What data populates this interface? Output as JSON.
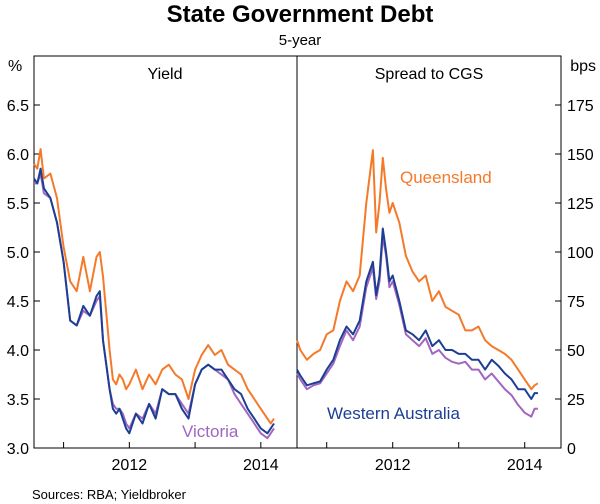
{
  "chart_data": {
    "type": "line",
    "title": "State Government Debt",
    "subtitle": "5-year",
    "source": "Sources:   RBA; Yieldbroker",
    "colors": {
      "queensland": "#f47a2a",
      "western_australia": "#1c3f94",
      "victoria": "#a066c0"
    },
    "panels": [
      {
        "title": "Yield",
        "unit": "%",
        "ylim": [
          3.0,
          7.0
        ],
        "yticks": [
          "3.0",
          "3.5",
          "4.0",
          "4.5",
          "5.0",
          "5.5",
          "6.0",
          "6.5"
        ],
        "xticks": [
          "2012",
          "2014"
        ],
        "xlim": [
          2010.55,
          2014.55
        ],
        "series": [
          {
            "name": "Queensland",
            "x": [
              2010.55,
              2010.6,
              2010.65,
              2010.7,
              2010.8,
              2010.9,
              2011.0,
              2011.1,
              2011.2,
              2011.3,
              2011.4,
              2011.5,
              2011.55,
              2011.6,
              2011.7,
              2011.75,
              2011.8,
              2011.85,
              2011.9,
              2011.95,
              2012.0,
              2012.1,
              2012.2,
              2012.3,
              2012.4,
              2012.5,
              2012.6,
              2012.7,
              2012.8,
              2012.9,
              2013.0,
              2013.1,
              2013.2,
              2013.3,
              2013.4,
              2013.5,
              2013.6,
              2013.7,
              2013.8,
              2013.9,
              2014.0,
              2014.1,
              2014.15,
              2014.2
            ],
            "y": [
              5.9,
              5.85,
              6.05,
              5.75,
              5.8,
              5.55,
              5.05,
              4.7,
              4.6,
              4.95,
              4.6,
              4.95,
              5.0,
              4.75,
              4.0,
              3.7,
              3.65,
              3.75,
              3.7,
              3.6,
              3.65,
              3.8,
              3.6,
              3.75,
              3.65,
              3.8,
              3.85,
              3.75,
              3.7,
              3.5,
              3.8,
              3.95,
              4.05,
              3.95,
              4.0,
              3.85,
              3.8,
              3.75,
              3.6,
              3.5,
              3.4,
              3.3,
              3.25,
              3.3
            ]
          },
          {
            "name": "Western Australia",
            "x": [
              2010.55,
              2010.6,
              2010.65,
              2010.7,
              2010.8,
              2010.9,
              2011.0,
              2011.1,
              2011.2,
              2011.3,
              2011.4,
              2011.5,
              2011.55,
              2011.6,
              2011.7,
              2011.75,
              2011.8,
              2011.85,
              2011.9,
              2011.95,
              2012.0,
              2012.1,
              2012.2,
              2012.3,
              2012.4,
              2012.5,
              2012.6,
              2012.7,
              2012.8,
              2012.9,
              2013.0,
              2013.1,
              2013.2,
              2013.3,
              2013.4,
              2013.5,
              2013.6,
              2013.7,
              2013.8,
              2013.9,
              2014.0,
              2014.1,
              2014.15,
              2014.2
            ],
            "y": [
              5.75,
              5.7,
              5.85,
              5.65,
              5.55,
              5.3,
              4.9,
              4.3,
              4.25,
              4.45,
              4.35,
              4.55,
              4.6,
              4.1,
              3.6,
              3.4,
              3.35,
              3.4,
              3.3,
              3.2,
              3.15,
              3.35,
              3.25,
              3.45,
              3.3,
              3.6,
              3.55,
              3.55,
              3.4,
              3.3,
              3.65,
              3.8,
              3.85,
              3.8,
              3.8,
              3.7,
              3.6,
              3.55,
              3.4,
              3.3,
              3.2,
              3.15,
              3.2,
              3.25
            ]
          },
          {
            "name": "Victoria",
            "x": [
              2010.55,
              2010.6,
              2010.65,
              2010.7,
              2010.8,
              2010.9,
              2011.0,
              2011.1,
              2011.2,
              2011.3,
              2011.4,
              2011.5,
              2011.55,
              2011.6,
              2011.7,
              2011.75,
              2011.8,
              2011.85,
              2011.9,
              2011.95,
              2012.0,
              2012.1,
              2012.2,
              2012.3,
              2012.4,
              2012.5,
              2012.6,
              2012.7,
              2012.8,
              2012.9,
              2013.0,
              2013.1,
              2013.2,
              2013.3,
              2013.4,
              2013.5,
              2013.6,
              2013.7,
              2013.8,
              2013.9,
              2014.0,
              2014.1,
              2014.15,
              2014.2
            ],
            "y": [
              5.7,
              5.7,
              5.8,
              5.6,
              5.55,
              5.3,
              4.9,
              4.3,
              4.25,
              4.4,
              4.35,
              4.5,
              4.55,
              4.1,
              3.6,
              3.45,
              3.4,
              3.4,
              3.35,
              3.25,
              3.2,
              3.35,
              3.3,
              3.45,
              3.35,
              3.6,
              3.55,
              3.55,
              3.45,
              3.35,
              3.65,
              3.8,
              3.85,
              3.8,
              3.75,
              3.7,
              3.55,
              3.45,
              3.35,
              3.25,
              3.15,
              3.1,
              3.15,
              3.2
            ]
          }
        ],
        "annotations": [
          {
            "text": "Victoria",
            "series": "Victoria"
          }
        ]
      },
      {
        "title": "Spread to CGS",
        "unit": "bps",
        "ylim": [
          0,
          200
        ],
        "yticks": [
          "0",
          "25",
          "50",
          "75",
          "100",
          "125",
          "150",
          "175"
        ],
        "xticks": [
          "2012",
          "2014"
        ],
        "xlim": [
          2010.55,
          2014.55
        ],
        "series": [
          {
            "name": "Queensland",
            "x": [
              2010.55,
              2010.6,
              2010.7,
              2010.8,
              2010.9,
              2011.0,
              2011.1,
              2011.2,
              2011.3,
              2011.4,
              2011.5,
              2011.6,
              2011.7,
              2011.75,
              2011.8,
              2011.85,
              2011.9,
              2011.95,
              2012.0,
              2012.1,
              2012.2,
              2012.3,
              2012.4,
              2012.5,
              2012.6,
              2012.7,
              2012.8,
              2012.9,
              2013.0,
              2013.1,
              2013.2,
              2013.3,
              2013.4,
              2013.5,
              2013.6,
              2013.7,
              2013.8,
              2013.9,
              2014.0,
              2014.1,
              2014.15,
              2014.2
            ],
            "y": [
              55,
              50,
              45,
              48,
              50,
              58,
              60,
              75,
              85,
              80,
              88,
              125,
              152,
              110,
              125,
              148,
              132,
              120,
              125,
              115,
              98,
              90,
              85,
              88,
              75,
              80,
              72,
              70,
              68,
              60,
              60,
              62,
              55,
              52,
              50,
              48,
              45,
              40,
              35,
              30,
              32,
              33
            ]
          },
          {
            "name": "Western Australia",
            "x": [
              2010.55,
              2010.6,
              2010.7,
              2010.8,
              2010.9,
              2011.0,
              2011.1,
              2011.2,
              2011.3,
              2011.4,
              2011.5,
              2011.6,
              2011.7,
              2011.75,
              2011.8,
              2011.85,
              2011.9,
              2011.95,
              2012.0,
              2012.1,
              2012.2,
              2012.3,
              2012.4,
              2012.5,
              2012.6,
              2012.7,
              2012.8,
              2012.9,
              2013.0,
              2013.1,
              2013.2,
              2013.3,
              2013.4,
              2013.5,
              2013.6,
              2013.7,
              2013.8,
              2013.9,
              2014.0,
              2014.1,
              2014.15,
              2014.2
            ],
            "y": [
              40,
              37,
              32,
              33,
              34,
              40,
              45,
              55,
              62,
              58,
              65,
              85,
              95,
              78,
              88,
              112,
              100,
              85,
              88,
              75,
              60,
              58,
              55,
              60,
              52,
              55,
              50,
              50,
              48,
              48,
              45,
              45,
              40,
              45,
              42,
              38,
              35,
              30,
              30,
              25,
              28,
              28
            ]
          },
          {
            "name": "Victoria",
            "x": [
              2010.55,
              2010.6,
              2010.7,
              2010.8,
              2010.9,
              2011.0,
              2011.1,
              2011.2,
              2011.3,
              2011.4,
              2011.5,
              2011.6,
              2011.7,
              2011.75,
              2011.8,
              2011.85,
              2011.9,
              2011.95,
              2012.0,
              2012.1,
              2012.2,
              2012.3,
              2012.4,
              2012.5,
              2012.6,
              2012.7,
              2012.8,
              2012.9,
              2013.0,
              2013.1,
              2013.2,
              2013.3,
              2013.4,
              2013.5,
              2013.6,
              2013.7,
              2013.8,
              2013.9,
              2014.0,
              2014.1,
              2014.15,
              2014.2
            ],
            "y": [
              38,
              35,
              30,
              32,
              33,
              38,
              43,
              52,
              60,
              55,
              62,
              82,
              92,
              76,
              85,
              108,
              98,
              82,
              85,
              73,
              58,
              55,
              52,
              56,
              48,
              50,
              46,
              44,
              43,
              44,
              40,
              40,
              35,
              38,
              34,
              30,
              27,
              22,
              18,
              16,
              20,
              20
            ]
          }
        ],
        "annotations": [
          {
            "text": "Queensland",
            "series": "Queensland"
          },
          {
            "text": "Western Australia",
            "series": "Western Australia"
          }
        ]
      }
    ]
  }
}
